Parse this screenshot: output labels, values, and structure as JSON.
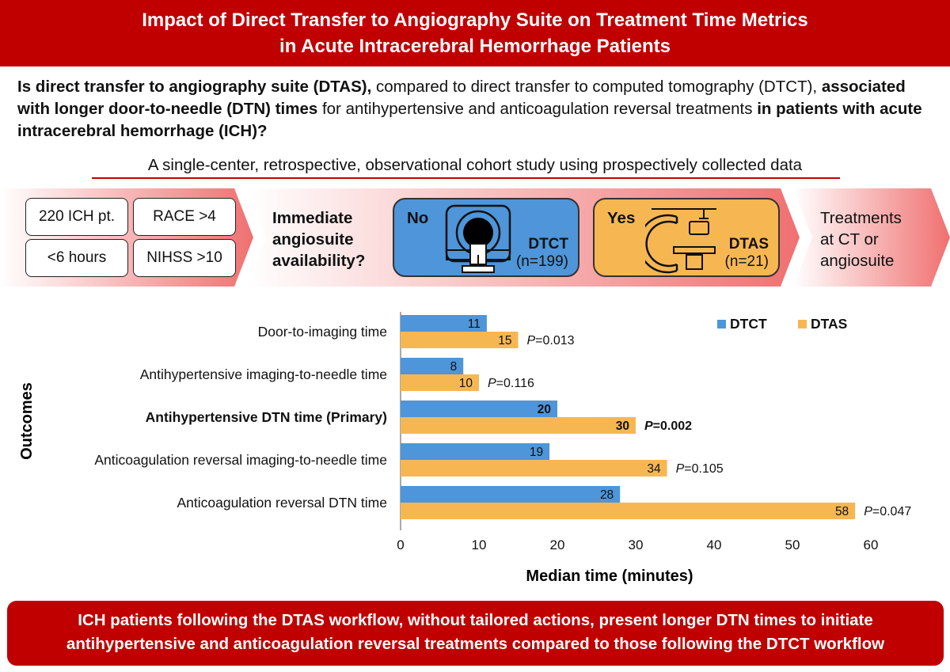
{
  "header": {
    "title_line1": "Impact of Direct Transfer to Angiography Suite on Treatment Time Metrics",
    "title_line2": "in Acute Intracerebral Hemorrhage Patients"
  },
  "question": {
    "part1_bold": "Is direct transfer to angiography suite (DTAS),",
    "part2": " compared to direct transfer to computed tomography (DTCT), ",
    "part3_bold": "associated with longer door-to-needle (DTN) times",
    "part4": " for antihypertensive and anticoagulation reversal treatments ",
    "part5_bold": "in patients with acute intracerebral hemorrhage (ICH)?"
  },
  "design": "A single-center, retrospective, observational cohort study using prospectively collected data",
  "criteria": [
    "220 ICH pt.",
    "RACE >4",
    "<6 hours",
    "NIHSS >10"
  ],
  "decision": {
    "question_line1": "Immediate",
    "question_line2": "angiosuite",
    "question_line3": "availability?",
    "no": {
      "label": "No",
      "code": "DTCT",
      "n": "(n=199)",
      "color": "#4e95d9"
    },
    "yes": {
      "label": "Yes",
      "code": "DTAS",
      "n": "(n=21)",
      "color": "#f6b753"
    },
    "treat_line1": "Treatments",
    "treat_line2": "at CT or",
    "treat_line3": "angiosuite"
  },
  "chart_data": {
    "type": "bar",
    "orientation": "horizontal",
    "ylabel": "Outcomes",
    "xlabel": "Median time (minutes)",
    "xlim": [
      0,
      60
    ],
    "xticks": [
      0,
      10,
      20,
      30,
      40,
      50,
      60
    ],
    "legend_position": "top-right",
    "categories": [
      "Door-to-imaging time",
      "Antihypertensive imaging-to-needle time",
      "Antihypertensive DTN time (Primary)",
      "Anticoagulation reversal imaging-to-needle time",
      "Anticoagulation reversal DTN time"
    ],
    "highlight_index": 2,
    "series": [
      {
        "name": "DTCT",
        "color": "#4e95d9",
        "values": [
          11,
          8,
          20,
          19,
          28
        ]
      },
      {
        "name": "DTAS",
        "color": "#f6b753",
        "values": [
          15,
          10,
          30,
          34,
          58
        ]
      }
    ],
    "p_label": "P",
    "p_values": [
      "=0.013",
      "=0.116",
      "=0.002",
      "=0.105",
      "=0.047"
    ]
  },
  "conclusion": {
    "line1": "ICH patients following the DTAS workflow, without tailored actions, present longer DTN times to initiate",
    "line2": "antihypertensive and anticoagulation reversal treatments compared to those following the DTCT workflow"
  }
}
